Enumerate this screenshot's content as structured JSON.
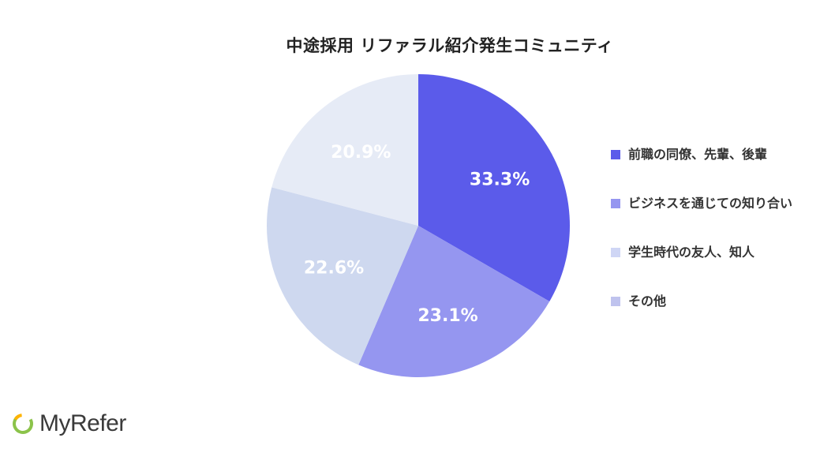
{
  "chart_data": {
    "type": "pie",
    "title": "中途採用 リファラル紹介発生コミュニティ",
    "categories": [
      "前職の同僚、先輩、後輩",
      "ビジネスを通じての知り合い",
      "学生時代の友人、知人",
      "その他"
    ],
    "values": [
      33.3,
      23.1,
      22.6,
      20.9
    ],
    "value_labels": [
      "33.3%",
      "23.1%",
      "22.6%",
      "20.9%"
    ],
    "colors": [
      "#5b5bea",
      "#9596f0",
      "#ced8ef",
      "#e6ebf6"
    ],
    "legend_colors": [
      "#5b5bea",
      "#9596f0",
      "#cfd6f5",
      "#bfc3ee"
    ],
    "legend_position": "right",
    "start_angle": "12 o'clock",
    "direction": "clockwise"
  },
  "logo": {
    "text": "MyRefer"
  }
}
